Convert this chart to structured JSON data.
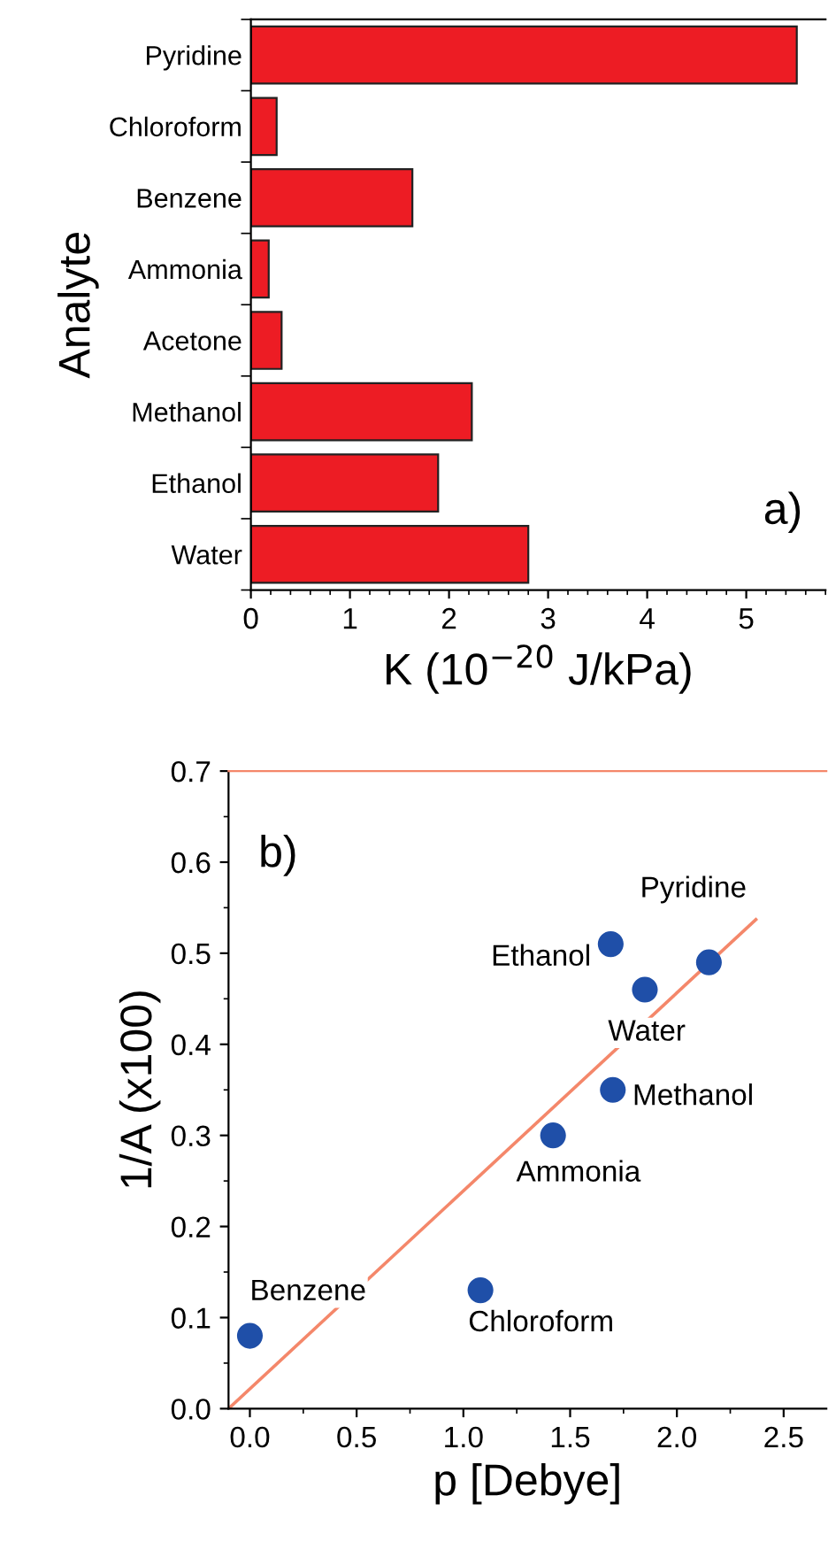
{
  "chart_data": [
    {
      "type": "bar",
      "orientation": "horizontal",
      "categories": [
        "Pyridine",
        "Chloroform",
        "Benzene",
        "Ammonia",
        "Acetone",
        "Methanol",
        "Ethanol",
        "Water"
      ],
      "values": [
        5.51,
        0.26,
        1.63,
        0.18,
        0.31,
        2.23,
        1.89,
        2.8
      ],
      "color": "#ed1c24",
      "xlim": [
        0,
        5.8
      ],
      "xticks": [
        0,
        1,
        2,
        3,
        4,
        5
      ],
      "xlabel": "K (10$^{−20}$ J/kPa)",
      "ylabel": "Analyte",
      "annotations": [
        "a)"
      ],
      "grid": false,
      "legend": false
    },
    {
      "type": "scatter",
      "series": [
        {
          "type": "scatter",
          "marker": "circle",
          "color": "#1f4fa8",
          "x": [
            0,
            1.08,
            1.42,
            1.7,
            1.69,
            1.85,
            2.15
          ],
          "values": [
            0.08,
            0.13,
            0.3,
            0.35,
            0.51,
            0.46,
            0.49
          ]
        },
        {
          "type": "line",
          "color": "#f4876a",
          "x": [
            -0.1,
            2.37
          ],
          "values": [
            0,
            0.537
          ]
        }
      ],
      "xlim": [
        -0.1,
        2.7
      ],
      "xticks": [
        {
          "value": 0,
          "label": "0.0"
        },
        0.5,
        {
          "value": 1,
          "label": "1.0"
        },
        1.5,
        {
          "value": 2,
          "label": "2.0"
        },
        2.5
      ],
      "ylim": [
        0,
        0.7
      ],
      "yticks": [
        {
          "value": 0,
          "label": "0.0"
        },
        0.1,
        0.2,
        0.3,
        0.4,
        0.5,
        0.6,
        0.7
      ],
      "xlabel": "p [Debye]",
      "ylabel": "1/A (x100)",
      "grid": false,
      "legend": false,
      "annotations": [
        "b)",
        {
          "text": "Benzene",
          "x": 0,
          "y": 0.08
        },
        {
          "text": "Chloroform",
          "x": 1.08,
          "y": 0.13
        },
        {
          "text": "Ammonia",
          "x": 1.42,
          "y": 0.3
        },
        {
          "text": "Methanol",
          "x": 1.7,
          "y": 0.35
        },
        {
          "text": "Ethanol",
          "x": 1.69,
          "y": 0.51
        },
        {
          "text": "Water",
          "x": 1.85,
          "y": 0.46
        },
        {
          "text": "Pyridine",
          "x": 2.15,
          "y": 0.49
        }
      ]
    }
  ]
}
